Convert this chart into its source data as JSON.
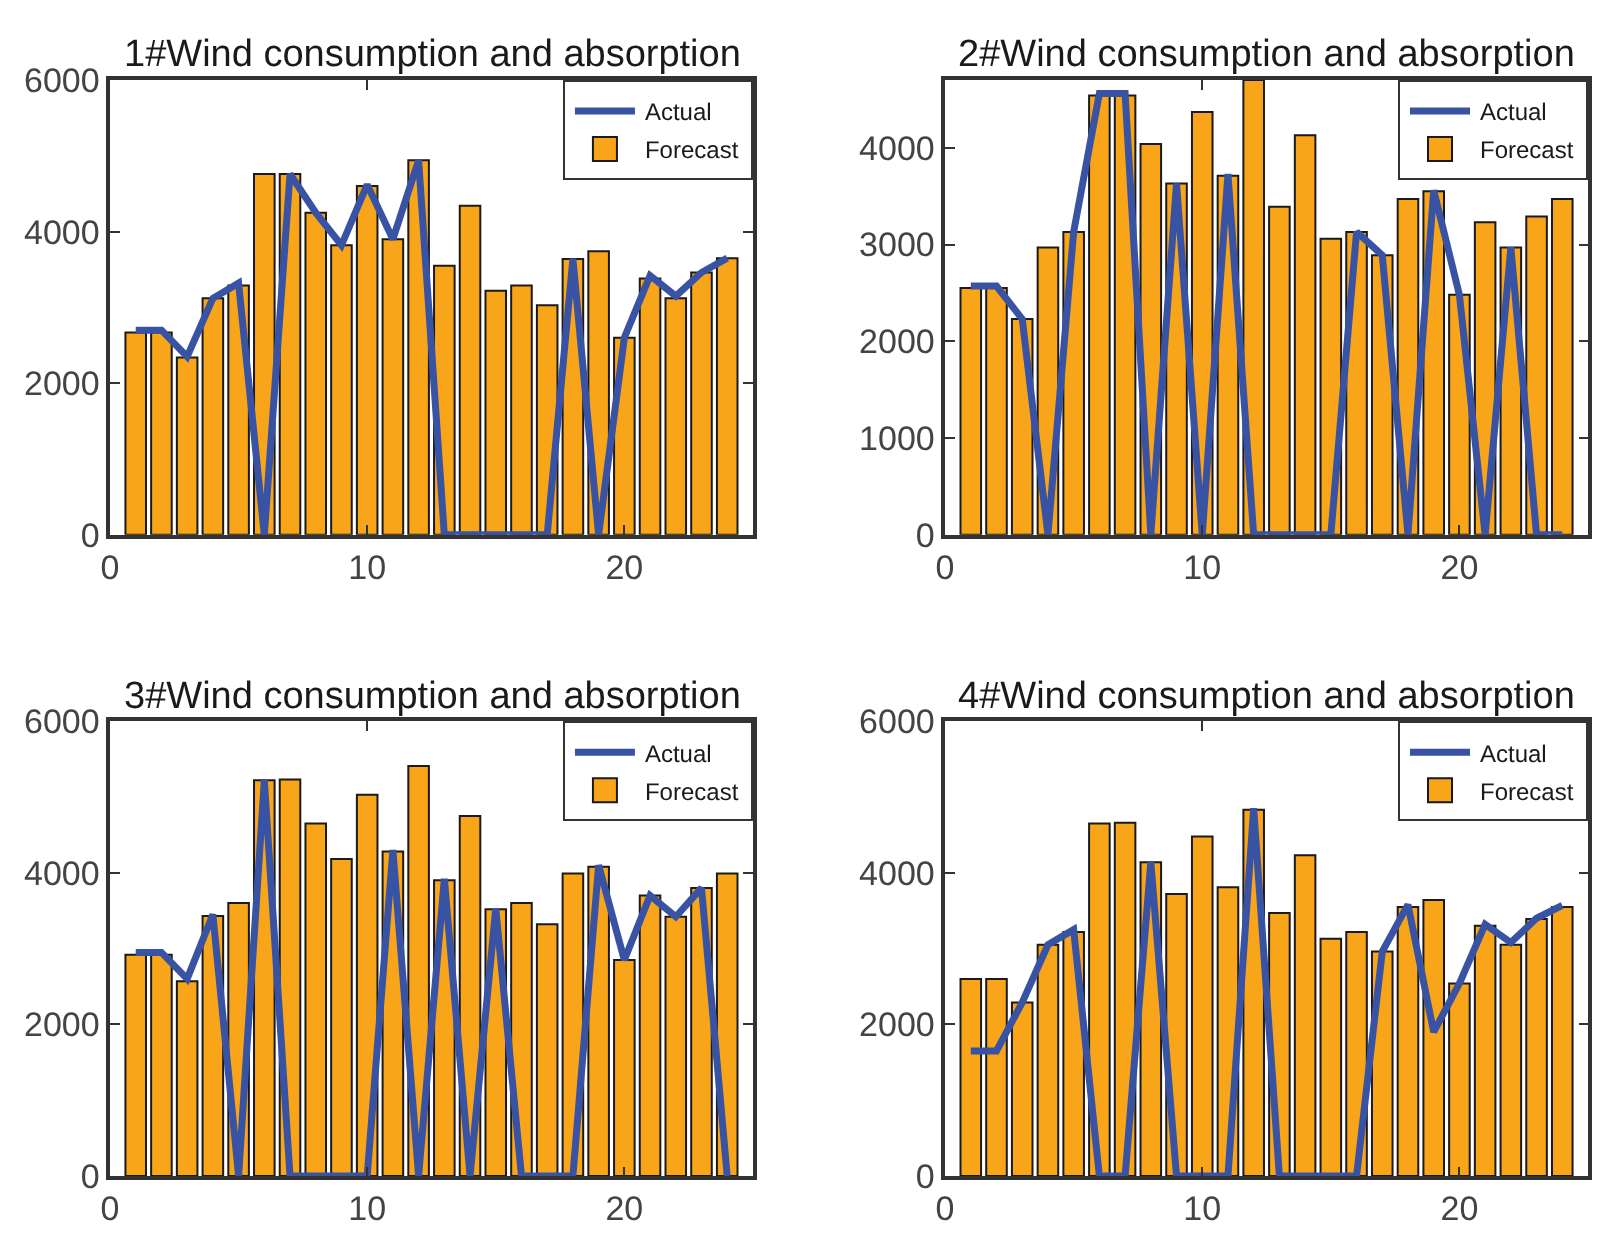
{
  "chart_data": [
    {
      "type": "bar",
      "title": "1#Wind consumption and absorption",
      "x": [
        1,
        2,
        3,
        4,
        5,
        6,
        7,
        8,
        9,
        10,
        11,
        12,
        13,
        14,
        15,
        16,
        17,
        18,
        19,
        20,
        21,
        22,
        23,
        24
      ],
      "xlim": [
        0,
        25
      ],
      "xticks": [
        0,
        10,
        20
      ],
      "ylim": [
        0,
        6000
      ],
      "yticks": [
        0,
        2000,
        4000,
        6000
      ],
      "grid": false,
      "legend": "top right",
      "series": [
        {
          "name": "Actual",
          "type": "line",
          "color": "#3953a4",
          "values": [
            2700,
            2700,
            2350,
            3120,
            3320,
            0,
            4760,
            4250,
            3820,
            4620,
            3900,
            4940,
            0,
            0,
            0,
            0,
            0,
            3640,
            0,
            2600,
            3420,
            3150,
            3460,
            3650
          ]
        },
        {
          "name": "Forecast",
          "color": "#f9a51a",
          "values": [
            2670,
            2670,
            2340,
            3120,
            3290,
            4760,
            4760,
            4250,
            3820,
            4600,
            3900,
            4940,
            3550,
            4340,
            3220,
            3290,
            3030,
            3640,
            3740,
            2600,
            3380,
            3120,
            3460,
            3650
          ]
        }
      ]
    },
    {
      "type": "bar",
      "title": "2#Wind consumption and absorption",
      "x": [
        1,
        2,
        3,
        4,
        5,
        6,
        7,
        8,
        9,
        10,
        11,
        12,
        13,
        14,
        15,
        16,
        17,
        18,
        19,
        20,
        21,
        22,
        23,
        24
      ],
      "xlim": [
        0,
        25
      ],
      "xticks": [
        0,
        10,
        20
      ],
      "ylim": [
        0,
        4700
      ],
      "yticks": [
        0,
        1000,
        2000,
        3000,
        4000
      ],
      "grid": false,
      "legend": "top right",
      "series": [
        {
          "name": "Actual",
          "type": "line",
          "color": "#3953a4",
          "values": [
            2570,
            2570,
            2230,
            0,
            3130,
            4560,
            4560,
            0,
            3630,
            0,
            3730,
            0,
            0,
            0,
            0,
            3130,
            2890,
            0,
            3560,
            2480,
            0,
            2970,
            0,
            0
          ]
        },
        {
          "name": "Forecast",
          "color": "#f9a51a",
          "values": [
            2550,
            2550,
            2230,
            2970,
            3130,
            4540,
            4540,
            4040,
            3630,
            4370,
            3710,
            4700,
            3390,
            4130,
            3060,
            3130,
            2890,
            3470,
            3550,
            2480,
            3230,
            2970,
            3290,
            3470
          ]
        }
      ]
    },
    {
      "type": "bar",
      "title": "3#Wind consumption and absorption",
      "x": [
        1,
        2,
        3,
        4,
        5,
        6,
        7,
        8,
        9,
        10,
        11,
        12,
        13,
        14,
        15,
        16,
        17,
        18,
        19,
        20,
        21,
        22,
        23,
        24
      ],
      "xlim": [
        0,
        25
      ],
      "xticks": [
        0,
        10,
        20
      ],
      "ylim": [
        0,
        6000
      ],
      "yticks": [
        0,
        2000,
        4000,
        6000
      ],
      "grid": false,
      "legend": "top right",
      "series": [
        {
          "name": "Actual",
          "type": "line",
          "color": "#3953a4",
          "values": [
            2950,
            2950,
            2600,
            3450,
            0,
            5220,
            0,
            0,
            0,
            0,
            4300,
            0,
            3920,
            0,
            3530,
            0,
            0,
            0,
            4100,
            2850,
            3700,
            3420,
            3800,
            0
          ]
        },
        {
          "name": "Forecast",
          "color": "#f9a51a",
          "values": [
            2920,
            2920,
            2570,
            3430,
            3600,
            5220,
            5230,
            4650,
            4180,
            5030,
            4280,
            5410,
            3900,
            4750,
            3520,
            3600,
            3320,
            3990,
            4080,
            2850,
            3700,
            3420,
            3800,
            3990
          ]
        }
      ]
    },
    {
      "type": "bar",
      "title": "4#Wind consumption and absorption",
      "x": [
        1,
        2,
        3,
        4,
        5,
        6,
        7,
        8,
        9,
        10,
        11,
        12,
        13,
        14,
        15,
        16,
        17,
        18,
        19,
        20,
        21,
        22,
        23,
        24
      ],
      "xlim": [
        0,
        25
      ],
      "xticks": [
        0,
        10,
        20
      ],
      "ylim": [
        0,
        6000
      ],
      "yticks": [
        0,
        2000,
        4000,
        6000
      ],
      "grid": false,
      "legend": "top right",
      "series": [
        {
          "name": "Actual",
          "type": "line",
          "color": "#3953a4",
          "values": [
            1650,
            1650,
            2290,
            3050,
            3250,
            0,
            0,
            4140,
            0,
            0,
            0,
            4850,
            0,
            0,
            0,
            0,
            2960,
            3580,
            1900,
            2540,
            3320,
            3080,
            3400,
            3570
          ]
        },
        {
          "name": "Forecast",
          "color": "#f9a51a",
          "values": [
            2600,
            2600,
            2290,
            3050,
            3220,
            4650,
            4660,
            4140,
            3720,
            4480,
            3810,
            4830,
            3470,
            4230,
            3130,
            3220,
            2960,
            3550,
            3640,
            2540,
            3300,
            3050,
            3390,
            3550
          ]
        }
      ]
    }
  ]
}
